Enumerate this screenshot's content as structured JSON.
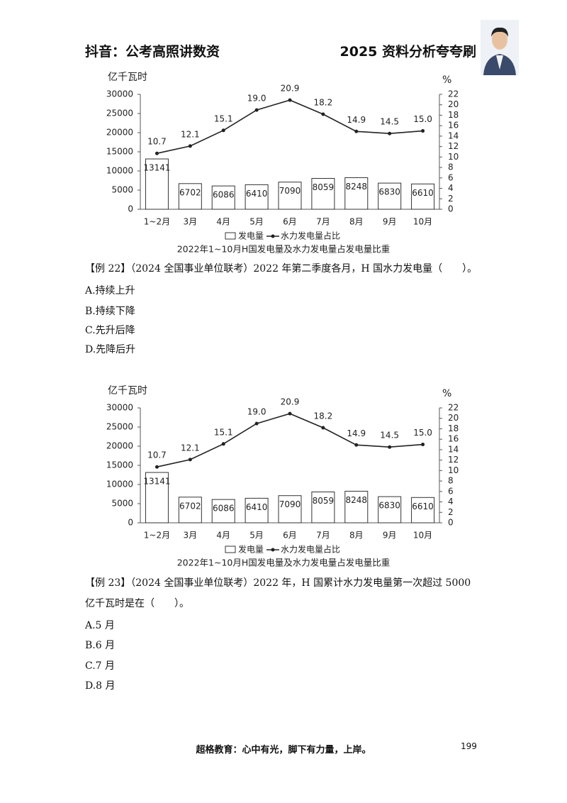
{
  "header": {
    "left": "抖音：公考高照讲数资",
    "right": "2025 资料分析夸夸刷"
  },
  "chart_data": [
    {
      "type": "bar_line",
      "y_label": "亿千瓦时",
      "y2_label": "%",
      "caption": "2022年1~10月H国发电量及水力发电量占发电量比重",
      "categories": [
        "1~2月",
        "3月",
        "4月",
        "5月",
        "6月",
        "7月",
        "8月",
        "9月",
        "10月"
      ],
      "series": [
        {
          "name": "发电量",
          "type": "bar",
          "color": "#ffffff",
          "values": [
            13141,
            6702,
            6086,
            6410,
            7090,
            8059,
            8248,
            6830,
            6610
          ]
        },
        {
          "name": "水力发电量占比",
          "type": "line",
          "axis": "y2",
          "color": "#222222",
          "values": [
            10.7,
            12.1,
            15.1,
            19,
            20.9,
            18.2,
            14.9,
            14.5,
            15
          ],
          "value_labels": [
            "10.7",
            "12.1",
            "15.1",
            "19.0",
            "20.9",
            "18.2",
            "14.9",
            "14.5",
            "15.0"
          ]
        }
      ],
      "ylim": [
        0,
        30000
      ],
      "yticks": [
        0,
        5000,
        10000,
        15000,
        20000,
        25000,
        30000
      ],
      "y2lim": [
        0,
        22
      ],
      "y2ticks": [
        0,
        2,
        4,
        6,
        8,
        10,
        12,
        14,
        16,
        18,
        20,
        22
      ]
    },
    {
      "type": "bar_line",
      "y_label": "亿千瓦时",
      "y2_label": "%",
      "caption": "2022年1~10月H国发电量及水力发电量占发电量比重",
      "categories": [
        "1~2月",
        "3月",
        "4月",
        "5月",
        "6月",
        "7月",
        "8月",
        "9月",
        "10月"
      ],
      "series": [
        {
          "name": "发电量",
          "type": "bar",
          "color": "#ffffff",
          "values": [
            13141,
            6702,
            6086,
            6410,
            7090,
            8059,
            8248,
            6830,
            6610
          ]
        },
        {
          "name": "水力发电量占比",
          "type": "line",
          "axis": "y2",
          "color": "#222222",
          "values": [
            10.7,
            12.1,
            15.1,
            19,
            20.9,
            18.2,
            14.9,
            14.5,
            15
          ],
          "value_labels": [
            "10.7",
            "12.1",
            "15.1",
            "19.0",
            "20.9",
            "18.2",
            "14.9",
            "14.5",
            "15.0"
          ]
        }
      ],
      "ylim": [
        0,
        30000
      ],
      "yticks": [
        0,
        5000,
        10000,
        15000,
        20000,
        25000,
        30000
      ],
      "y2lim": [
        0,
        22
      ],
      "y2ticks": [
        0,
        2,
        4,
        6,
        8,
        10,
        12,
        14,
        16,
        18,
        20,
        22
      ]
    }
  ],
  "questions": [
    {
      "stem": "【例 22】（2024 全国事业单位联考）2022 年第二季度各月，H 国水力发电量（　　）。",
      "options": [
        "A.持续上升",
        "B.持续下降",
        "C.先升后降",
        "D.先降后升"
      ]
    },
    {
      "stem": "【例 23】（2024 全国事业单位联考）2022 年，H 国累计水力发电量第一次超过 5000 亿千瓦时是在（　　）。",
      "options": [
        "A.5 月",
        "B.6 月",
        "C.7 月",
        "D.8 月"
      ]
    }
  ],
  "footer": {
    "slogan": "超格教育：心中有光，脚下有力量，上岸。",
    "page_number": "199"
  }
}
